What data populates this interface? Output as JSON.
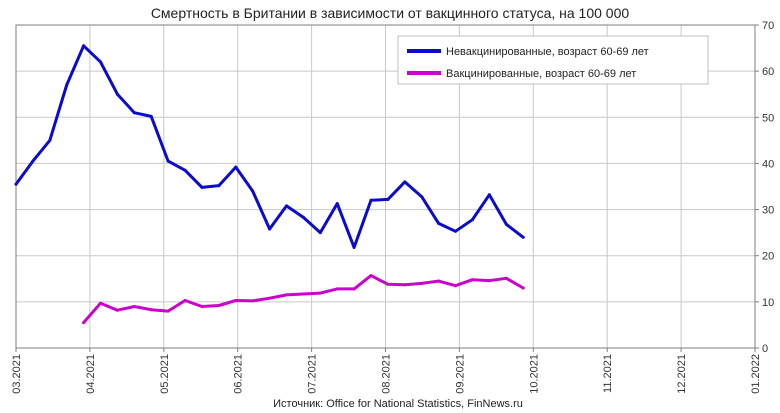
{
  "chart_data": {
    "type": "line",
    "title": "Смертность в Британии в зависимости от вакцинного статуса, на 100 000",
    "source": "Источник: Office for National Statistics, FinNews.ru",
    "x_ticks": [
      "03.2021",
      "04.2021",
      "05.2021",
      "06.2021",
      "07.2021",
      "08.2021",
      "09.2021",
      "10.2021",
      "11.2021",
      "12.2021",
      "01.2022"
    ],
    "y_ticks": [
      "0",
      "10",
      "20",
      "30",
      "40",
      "50",
      "60",
      "70"
    ],
    "ylim": [
      0,
      70
    ],
    "y_axis_side": "right",
    "grid": true,
    "legend_position": "top-right",
    "series": [
      {
        "name": "Невакцинированные, возраст 60-69 лет",
        "color": "#0a0ad0",
        "x": [
          "2021-03-01",
          "2021-03-08",
          "2021-03-15",
          "2021-03-22",
          "2021-03-29",
          "2021-04-05",
          "2021-04-12",
          "2021-04-19",
          "2021-04-26",
          "2021-05-03",
          "2021-05-10",
          "2021-05-17",
          "2021-05-24",
          "2021-05-31",
          "2021-06-07",
          "2021-06-14",
          "2021-06-21",
          "2021-06-28",
          "2021-07-05",
          "2021-07-12",
          "2021-07-19",
          "2021-07-26",
          "2021-08-02",
          "2021-08-09",
          "2021-08-16",
          "2021-08-23",
          "2021-08-30",
          "2021-09-06",
          "2021-09-13",
          "2021-09-20",
          "2021-09-27"
        ],
        "values": [
          35.5,
          40.5,
          45,
          57,
          65.5,
          62,
          55,
          51,
          50.2,
          40.5,
          38.5,
          34.8,
          35.2,
          39.2,
          34,
          25.8,
          30.8,
          28.3,
          25,
          31.3,
          21.8,
          32,
          32.2,
          36,
          32.8,
          27,
          25.3,
          27.8,
          33.2,
          26.8,
          24
        ]
      },
      {
        "name": "Вакцинированные, возраст 60-69 лет",
        "color": "#cc00cc",
        "x": [
          "2021-03-29",
          "2021-04-05",
          "2021-04-12",
          "2021-04-19",
          "2021-04-26",
          "2021-05-03",
          "2021-05-10",
          "2021-05-17",
          "2021-05-24",
          "2021-05-31",
          "2021-06-07",
          "2021-06-14",
          "2021-06-21",
          "2021-06-28",
          "2021-07-05",
          "2021-07-12",
          "2021-07-19",
          "2021-07-26",
          "2021-08-02",
          "2021-08-09",
          "2021-08-16",
          "2021-08-23",
          "2021-08-30",
          "2021-09-06",
          "2021-09-13",
          "2021-09-20",
          "2021-09-27"
        ],
        "values": [
          5.5,
          9.7,
          8.2,
          9,
          8.3,
          8,
          10.3,
          9,
          9.2,
          10.3,
          10.2,
          10.8,
          11.5,
          11.7,
          11.9,
          12.8,
          12.8,
          15.7,
          13.8,
          13.7,
          14,
          14.5,
          13.5,
          14.8,
          14.6,
          15.1,
          13
        ]
      }
    ]
  }
}
